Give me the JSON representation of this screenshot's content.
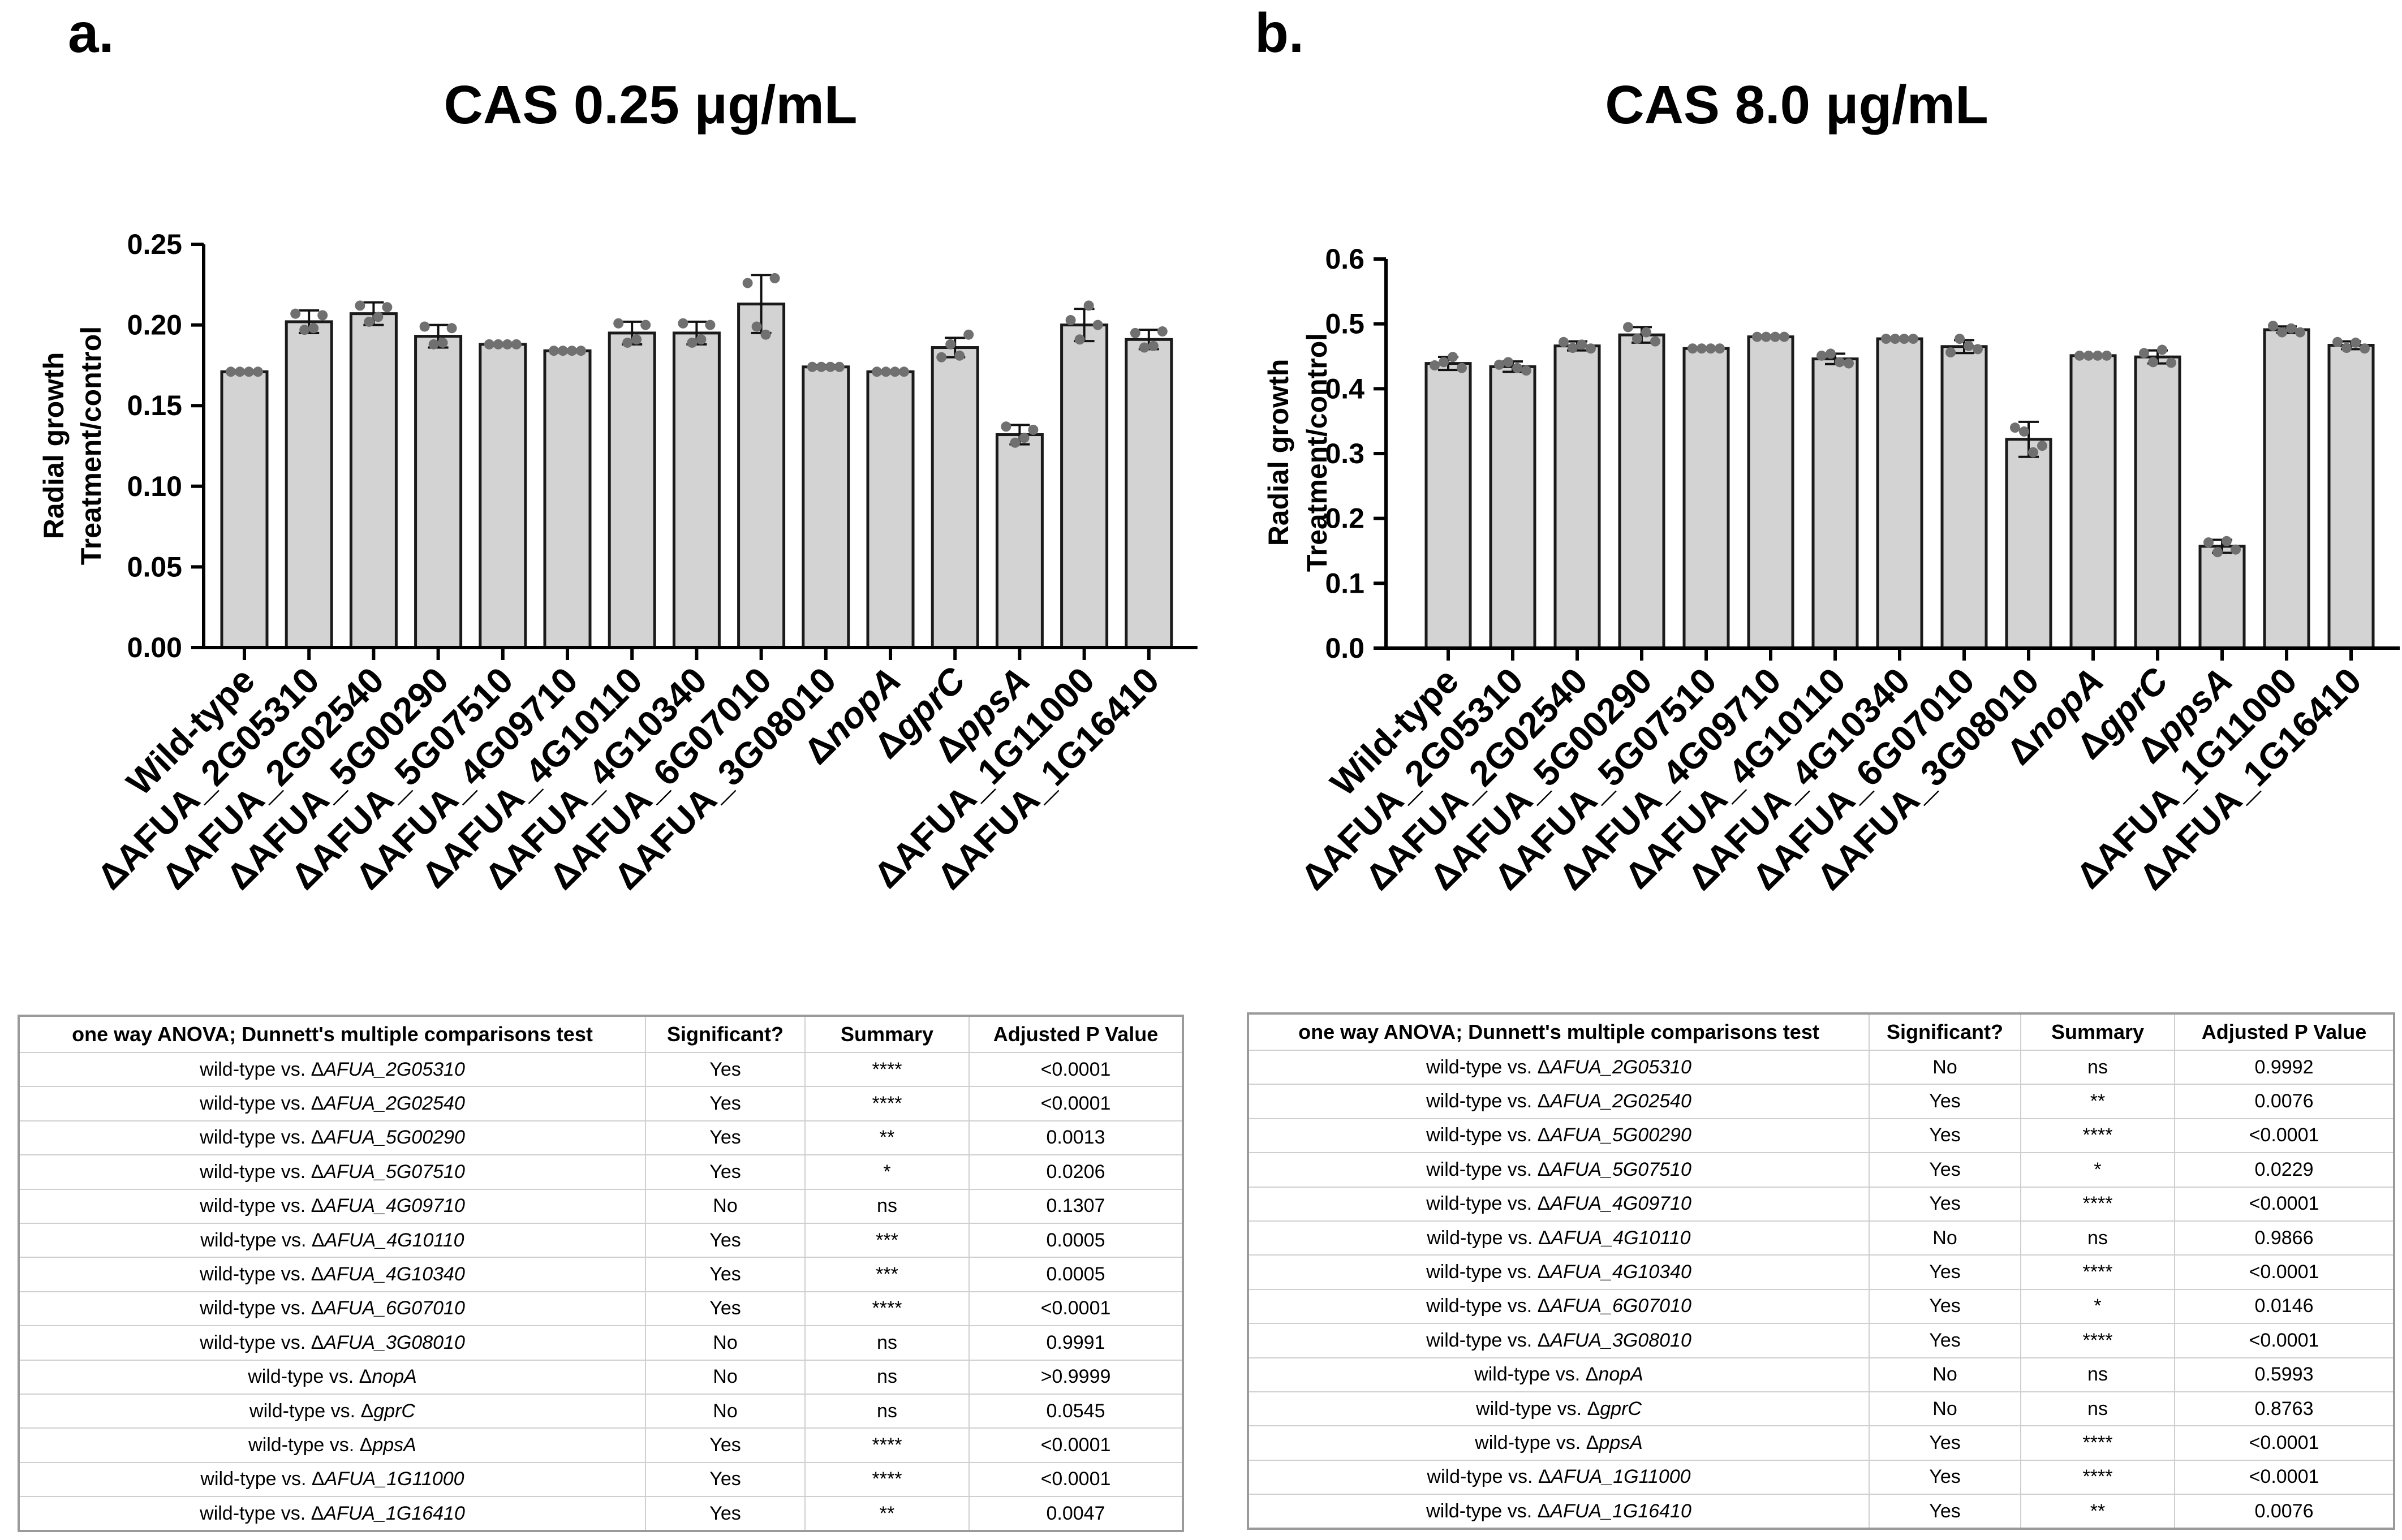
{
  "panels": [
    {
      "letter": "a.",
      "title": "CAS 0.25 μg/mL",
      "table": {
        "headers": [
          "one way ANOVA; Dunnett's multiple comparisons test",
          "Significant?",
          "Summary",
          "Adjusted P Value"
        ],
        "rows": [
          {
            "prefix": "wild-type vs. Δ",
            "mutant": "AFUA_2G05310",
            "italic": true,
            "significant": "Yes",
            "summary": "****",
            "p": "<0.0001"
          },
          {
            "prefix": "wild-type vs. Δ",
            "mutant": "AFUA_2G02540",
            "italic": true,
            "significant": "Yes",
            "summary": "****",
            "p": "<0.0001"
          },
          {
            "prefix": "wild-type vs. Δ",
            "mutant": "AFUA_5G00290",
            "italic": true,
            "significant": "Yes",
            "summary": "**",
            "p": "0.0013"
          },
          {
            "prefix": "wild-type vs. Δ",
            "mutant": "AFUA_5G07510",
            "italic": true,
            "significant": "Yes",
            "summary": "*",
            "p": "0.0206"
          },
          {
            "prefix": "wild-type vs. Δ",
            "mutant": "AFUA_4G09710",
            "italic": true,
            "significant": "No",
            "summary": "ns",
            "p": "0.1307"
          },
          {
            "prefix": "wild-type vs. Δ",
            "mutant": "AFUA_4G10110",
            "italic": true,
            "significant": "Yes",
            "summary": "***",
            "p": "0.0005"
          },
          {
            "prefix": "wild-type vs. Δ",
            "mutant": "AFUA_4G10340",
            "italic": true,
            "significant": "Yes",
            "summary": "***",
            "p": "0.0005"
          },
          {
            "prefix": "wild-type vs. Δ",
            "mutant": "AFUA_6G07010",
            "italic": true,
            "significant": "Yes",
            "summary": "****",
            "p": "<0.0001"
          },
          {
            "prefix": "wild-type vs. Δ",
            "mutant": "AFUA_3G08010",
            "italic": true,
            "significant": "No",
            "summary": "ns",
            "p": "0.9991"
          },
          {
            "prefix": "wild-type vs. Δ",
            "mutant": "nopA",
            "italic": true,
            "significant": "No",
            "summary": "ns",
            "p": ">0.9999"
          },
          {
            "prefix": "wild-type vs. Δ",
            "mutant": "gprC",
            "italic": true,
            "significant": "No",
            "summary": "ns",
            "p": "0.0545"
          },
          {
            "prefix": "wild-type vs. Δ",
            "mutant": "ppsA",
            "italic": true,
            "significant": "Yes",
            "summary": "****",
            "p": "<0.0001"
          },
          {
            "prefix": "wild-type vs. Δ",
            "mutant": "AFUA_1G11000",
            "italic": true,
            "significant": "Yes",
            "summary": "****",
            "p": "<0.0001"
          },
          {
            "prefix": "wild-type vs. Δ",
            "mutant": "AFUA_1G16410",
            "italic": true,
            "significant": "Yes",
            "summary": "**",
            "p": "0.0047"
          }
        ]
      }
    },
    {
      "letter": "b.",
      "title": "CAS 8.0 μg/mL",
      "table": {
        "headers": [
          "one way ANOVA; Dunnett's multiple comparisons test",
          "Significant?",
          "Summary",
          "Adjusted P Value"
        ],
        "rows": [
          {
            "prefix": "wild-type vs. Δ",
            "mutant": "AFUA_2G05310",
            "italic": true,
            "significant": "No",
            "summary": "ns",
            "p": "0.9992"
          },
          {
            "prefix": "wild-type vs. Δ",
            "mutant": "AFUA_2G02540",
            "italic": true,
            "significant": "Yes",
            "summary": "**",
            "p": "0.0076"
          },
          {
            "prefix": "wild-type vs. Δ",
            "mutant": "AFUA_5G00290",
            "italic": true,
            "significant": "Yes",
            "summary": "****",
            "p": "<0.0001"
          },
          {
            "prefix": "wild-type vs. Δ",
            "mutant": "AFUA_5G07510",
            "italic": true,
            "significant": "Yes",
            "summary": "*",
            "p": "0.0229"
          },
          {
            "prefix": "wild-type vs. Δ",
            "mutant": "AFUA_4G09710",
            "italic": true,
            "significant": "Yes",
            "summary": "****",
            "p": "<0.0001"
          },
          {
            "prefix": "wild-type vs. Δ",
            "mutant": "AFUA_4G10110",
            "italic": true,
            "significant": "No",
            "summary": "ns",
            "p": "0.9866"
          },
          {
            "prefix": "wild-type vs. Δ",
            "mutant": "AFUA_4G10340",
            "italic": true,
            "significant": "Yes",
            "summary": "****",
            "p": "<0.0001"
          },
          {
            "prefix": "wild-type vs. Δ",
            "mutant": "AFUA_6G07010",
            "italic": true,
            "significant": "Yes",
            "summary": "*",
            "p": "0.0146"
          },
          {
            "prefix": "wild-type vs. Δ",
            "mutant": "AFUA_3G08010",
            "italic": true,
            "significant": "Yes",
            "summary": "****",
            "p": "<0.0001"
          },
          {
            "prefix": "wild-type vs. Δ",
            "mutant": "nopA",
            "italic": true,
            "significant": "No",
            "summary": "ns",
            "p": "0.5993"
          },
          {
            "prefix": "wild-type vs. Δ",
            "mutant": "gprC",
            "italic": true,
            "significant": "No",
            "summary": "ns",
            "p": "0.8763"
          },
          {
            "prefix": "wild-type vs. Δ",
            "mutant": "ppsA",
            "italic": true,
            "significant": "Yes",
            "summary": "****",
            "p": "<0.0001"
          },
          {
            "prefix": "wild-type vs. Δ",
            "mutant": "AFUA_1G11000",
            "italic": true,
            "significant": "Yes",
            "summary": "****",
            "p": "<0.0001"
          },
          {
            "prefix": "wild-type vs. Δ",
            "mutant": "AFUA_1G16410",
            "italic": true,
            "significant": "Yes",
            "summary": "**",
            "p": "0.0076"
          }
        ]
      }
    }
  ],
  "chart_data": [
    {
      "type": "bar",
      "title": "CAS 0.25 μg/mL",
      "xlabel": "",
      "ylabel": [
        "Radial growth",
        "Treatment/control"
      ],
      "ylim": [
        0,
        0.25
      ],
      "yticks": [
        "0.00",
        "0.05",
        "0.10",
        "0.15",
        "0.20",
        "0.25"
      ],
      "categories": [
        {
          "prefix": "",
          "label": "Wild-type",
          "italic": false
        },
        {
          "prefix": "Δ",
          "label": "AFUA_2G05310",
          "italic": false
        },
        {
          "prefix": "Δ",
          "label": "AFUA_2G02540",
          "italic": false
        },
        {
          "prefix": "Δ",
          "label": "AFUA_5G00290",
          "italic": false
        },
        {
          "prefix": "Δ",
          "label": "AFUA_5G07510",
          "italic": false
        },
        {
          "prefix": "Δ",
          "label": "AFUA_4G09710",
          "italic": false
        },
        {
          "prefix": "Δ",
          "label": "AFUA_4G10110",
          "italic": false
        },
        {
          "prefix": "Δ",
          "label": "AFUA_4G10340",
          "italic": false
        },
        {
          "prefix": "Δ",
          "label": "AFUA_6G07010",
          "italic": false
        },
        {
          "prefix": "Δ",
          "label": "AFUA_3G08010",
          "italic": false
        },
        {
          "prefix": "Δ",
          "label": "nopA",
          "italic": true
        },
        {
          "prefix": "Δ",
          "label": "gprC",
          "italic": true
        },
        {
          "prefix": "Δ",
          "label": "ppsA",
          "italic": true
        },
        {
          "prefix": "Δ",
          "label": "AFUA_1G11000",
          "italic": false
        },
        {
          "prefix": "Δ",
          "label": "AFUA_1G16410",
          "italic": false
        }
      ],
      "values": [
        0.171,
        0.202,
        0.207,
        0.193,
        0.188,
        0.184,
        0.195,
        0.195,
        0.213,
        0.174,
        0.171,
        0.186,
        0.132,
        0.2,
        0.191
      ],
      "errors": [
        0.001,
        0.007,
        0.007,
        0.007,
        0.001,
        0.001,
        0.007,
        0.007,
        0.018,
        0.001,
        0.001,
        0.006,
        0.006,
        0.01,
        0.006
      ],
      "points": [
        [
          0.171,
          0.171,
          0.171,
          0.171
        ],
        [
          0.207,
          0.197,
          0.198,
          0.206
        ],
        [
          0.212,
          0.202,
          0.205,
          0.211
        ],
        [
          0.199,
          0.188,
          0.189,
          0.198
        ],
        [
          0.188,
          0.188,
          0.188,
          0.188
        ],
        [
          0.184,
          0.184,
          0.184,
          0.184
        ],
        [
          0.201,
          0.189,
          0.191,
          0.2
        ],
        [
          0.201,
          0.189,
          0.191,
          0.2
        ],
        [
          0.226,
          0.199,
          0.194,
          0.229
        ],
        [
          0.174,
          0.174,
          0.174,
          0.174
        ],
        [
          0.171,
          0.171,
          0.171,
          0.171
        ],
        [
          0.18,
          0.188,
          0.181,
          0.194
        ],
        [
          0.137,
          0.127,
          0.13,
          0.135
        ],
        [
          0.203,
          0.191,
          0.212,
          0.2
        ],
        [
          0.195,
          0.186,
          0.187,
          0.196
        ]
      ]
    },
    {
      "type": "bar",
      "title": "CAS 8.0 μg/mL",
      "xlabel": "",
      "ylabel": [
        "Radial growth",
        "Treatment/control"
      ],
      "ylim": [
        0,
        0.6
      ],
      "yticks": [
        "0.0",
        "0.1",
        "0.2",
        "0.3",
        "0.4",
        "0.5",
        "0.6"
      ],
      "categories": [
        {
          "prefix": "",
          "label": "Wild-type",
          "italic": false
        },
        {
          "prefix": "Δ",
          "label": "AFUA_2G05310",
          "italic": false
        },
        {
          "prefix": "Δ",
          "label": "AFUA_2G02540",
          "italic": false
        },
        {
          "prefix": "Δ",
          "label": "AFUA_5G00290",
          "italic": false
        },
        {
          "prefix": "Δ",
          "label": "AFUA_5G07510",
          "italic": false
        },
        {
          "prefix": "Δ",
          "label": "AFUA_4G09710",
          "italic": false
        },
        {
          "prefix": "Δ",
          "label": "AFUA_4G10110",
          "italic": false
        },
        {
          "prefix": "Δ",
          "label": "AFUA_4G10340",
          "italic": false
        },
        {
          "prefix": "Δ",
          "label": "AFUA_6G07010",
          "italic": false
        },
        {
          "prefix": "Δ",
          "label": "AFUA_3G08010",
          "italic": false
        },
        {
          "prefix": "Δ",
          "label": "nopA",
          "italic": true
        },
        {
          "prefix": "Δ",
          "label": "gprC",
          "italic": true
        },
        {
          "prefix": "Δ",
          "label": "ppsA",
          "italic": true
        },
        {
          "prefix": "Δ",
          "label": "AFUA_1G11000",
          "italic": false
        },
        {
          "prefix": "Δ",
          "label": "AFUA_1G16410",
          "italic": false
        }
      ],
      "values": [
        0.439,
        0.434,
        0.466,
        0.483,
        0.462,
        0.48,
        0.446,
        0.477,
        0.465,
        0.322,
        0.451,
        0.449,
        0.157,
        0.491,
        0.467
      ],
      "errors": [
        0.01,
        0.008,
        0.007,
        0.012,
        0.002,
        0.002,
        0.008,
        0.002,
        0.01,
        0.027,
        0.002,
        0.01,
        0.01,
        0.005,
        0.006
      ],
      "points": [
        [
          0.436,
          0.441,
          0.449,
          0.432
        ],
        [
          0.437,
          0.441,
          0.432,
          0.428
        ],
        [
          0.472,
          0.463,
          0.468,
          0.462
        ],
        [
          0.495,
          0.477,
          0.487,
          0.473
        ],
        [
          0.462,
          0.462,
          0.462,
          0.462
        ],
        [
          0.48,
          0.48,
          0.48,
          0.48
        ],
        [
          0.451,
          0.454,
          0.441,
          0.439
        ],
        [
          0.477,
          0.477,
          0.477,
          0.477
        ],
        [
          0.456,
          0.477,
          0.466,
          0.461
        ],
        [
          0.34,
          0.334,
          0.302,
          0.312
        ],
        [
          0.451,
          0.451,
          0.451,
          0.451
        ],
        [
          0.455,
          0.441,
          0.46,
          0.44
        ],
        [
          0.163,
          0.148,
          0.165,
          0.152
        ],
        [
          0.497,
          0.487,
          0.493,
          0.487
        ],
        [
          0.472,
          0.463,
          0.471,
          0.462
        ]
      ]
    }
  ]
}
